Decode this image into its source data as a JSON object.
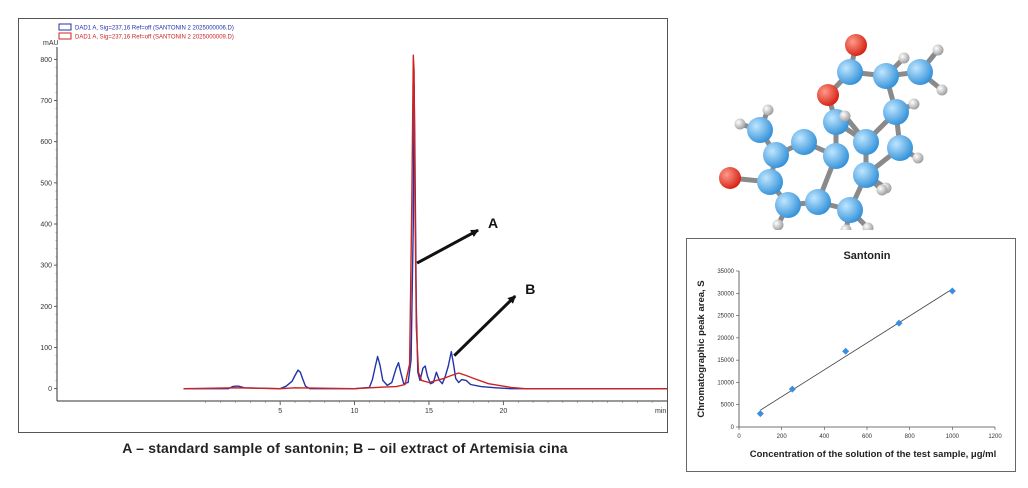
{
  "caption": "A – standard sample of santonin; B – oil extract of Artemisia cina",
  "chart_data": [
    {
      "type": "line",
      "ylabel": "mAU",
      "xlabel": "min",
      "xlim": [
        -10,
        31
      ],
      "ylim": [
        -30,
        830
      ],
      "x_ticks": [
        5,
        10,
        15,
        20
      ],
      "y_ticks": [
        0,
        100,
        200,
        300,
        400,
        500,
        600,
        700,
        800
      ],
      "legend": [
        {
          "label": "DAD1 A, Sig=237,16 Ref=off (SANTONIN 2 2025000006.D)",
          "color": "#2233aa"
        },
        {
          "label": "DAD1 A, Sig=237,16 Ref=off (SANTONIN 2 2025000009.D)",
          "color": "#cc2222"
        }
      ],
      "annotations": [
        {
          "label": "A",
          "x": 14.2,
          "y": 305
        },
        {
          "label": "B",
          "x": 16.7,
          "y": 80
        }
      ],
      "series": [
        {
          "color": "#2233aa",
          "x": [
            -1.5,
            1.5,
            1.8,
            2.0,
            2.2,
            2.6,
            5.0,
            5.4,
            5.8,
            6.0,
            6.2,
            6.35,
            6.5,
            6.7,
            7.0,
            10.0,
            11.0,
            11.2,
            11.4,
            11.55,
            11.7,
            11.9,
            12.2,
            12.5,
            12.8,
            12.95,
            13.1,
            13.3,
            13.6,
            13.8,
            13.95,
            14.0,
            14.05,
            14.15,
            14.25,
            14.4,
            14.6,
            14.75,
            14.9,
            15.1,
            15.3,
            15.5,
            15.7,
            15.9,
            16.1,
            16.3,
            16.5,
            16.65,
            16.8,
            17.0,
            17.2,
            17.5,
            17.8,
            18.5,
            19.5,
            20.5,
            31.0
          ],
          "y": [
            0,
            0,
            5,
            6,
            6,
            2,
            0,
            6,
            18,
            32,
            45,
            40,
            25,
            6,
            0,
            0,
            3,
            22,
            55,
            78,
            58,
            20,
            8,
            15,
            50,
            63,
            40,
            12,
            15,
            70,
            400,
            740,
            600,
            200,
            40,
            20,
            50,
            55,
            30,
            12,
            15,
            40,
            20,
            12,
            30,
            55,
            90,
            60,
            25,
            15,
            22,
            20,
            10,
            5,
            2,
            0,
            0
          ]
        },
        {
          "color": "#cc2222",
          "x": [
            -1.5,
            2.0,
            5.0,
            6.0,
            10.0,
            11.5,
            12.8,
            13.4,
            13.7,
            13.85,
            13.95,
            14.0,
            14.05,
            14.15,
            14.3,
            14.5,
            15.0,
            15.5,
            16.0,
            16.5,
            17.0,
            17.5,
            18.0,
            19.0,
            20.5,
            21.5,
            31.0
          ],
          "y": [
            0,
            2,
            0,
            2,
            0,
            3,
            5,
            10,
            60,
            450,
            810,
            770,
            500,
            150,
            40,
            20,
            15,
            20,
            25,
            32,
            38,
            32,
            25,
            12,
            3,
            0,
            0
          ]
        }
      ]
    },
    {
      "type": "scatter",
      "title": "Santonin",
      "xlabel": "Concentration of the solution of the test sample, μg/ml",
      "ylabel": "Chromatographic peak area, S",
      "xlim": [
        0,
        1200
      ],
      "ylim": [
        0,
        35000
      ],
      "x_ticks": [
        0,
        200,
        400,
        600,
        800,
        1000,
        1200
      ],
      "y_ticks": [
        0,
        5000,
        10000,
        15000,
        20000,
        25000,
        30000,
        35000
      ],
      "trendline": true,
      "point_color": "#3a8ee0",
      "points": {
        "x": [
          100,
          250,
          500,
          750,
          1000
        ],
        "y": [
          3000,
          8500,
          17000,
          23300,
          30500
        ]
      }
    }
  ]
}
